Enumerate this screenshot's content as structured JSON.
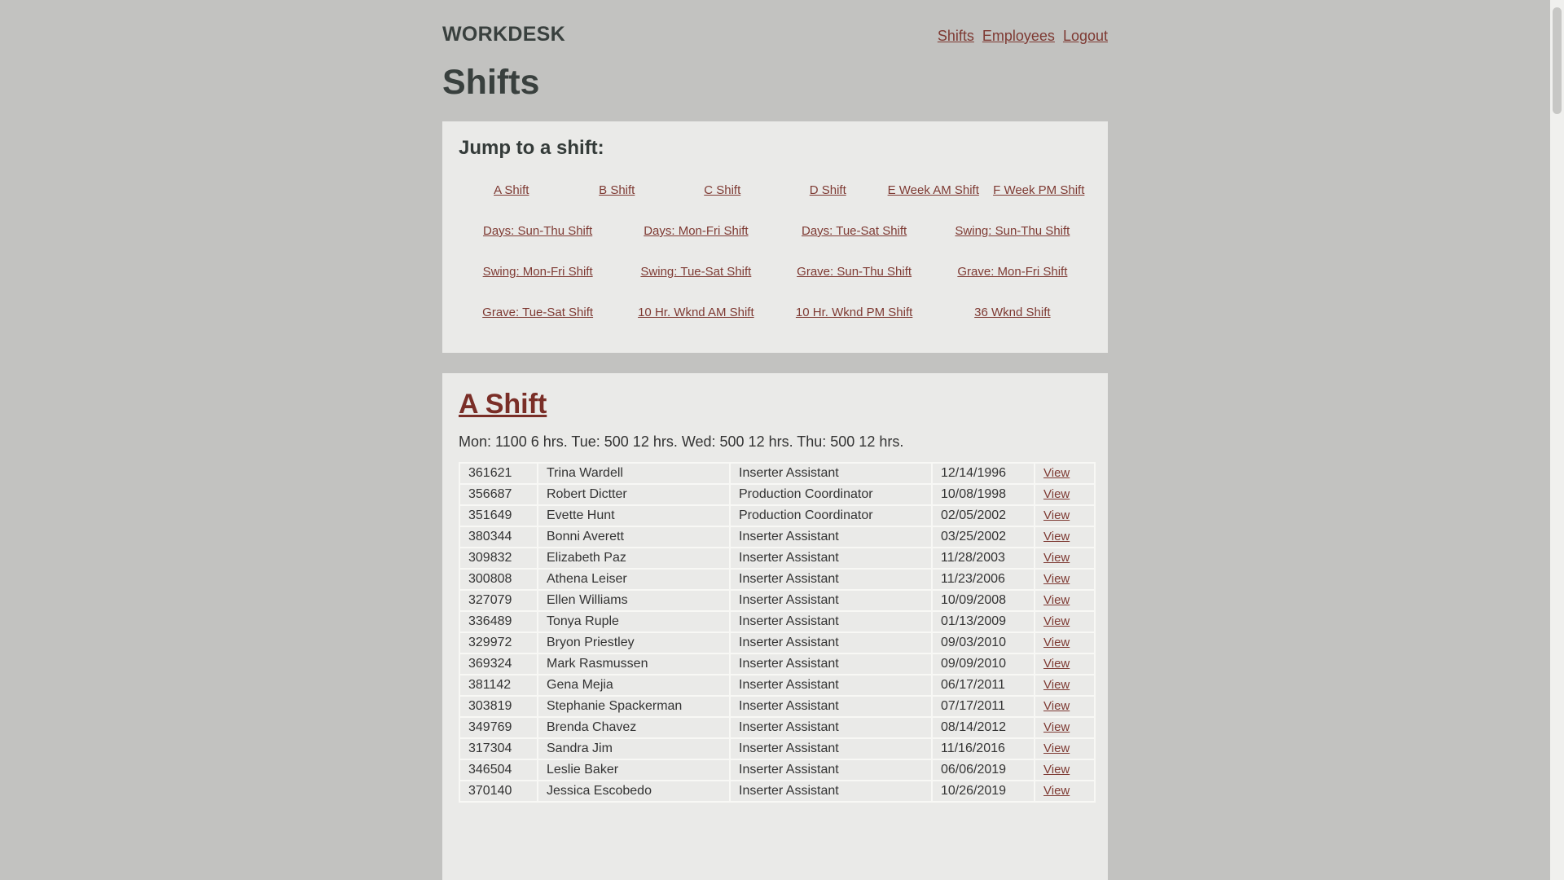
{
  "brand": "WORKDESK",
  "nav": {
    "links": [
      {
        "label": "Shifts"
      },
      {
        "label": "Employees"
      },
      {
        "label": "Logout"
      }
    ]
  },
  "page_title": "Shifts",
  "jump": {
    "heading": "Jump to a shift:",
    "rows": [
      [
        "A Shift",
        "B Shift",
        "C Shift",
        "D Shift",
        "E Week AM Shift",
        "F Week PM Shift"
      ],
      [
        "Days: Sun-Thu Shift",
        "Days: Mon-Fri Shift",
        "Days: Tue-Sat Shift",
        "Swing: Sun-Thu Shift"
      ],
      [
        "Swing: Mon-Fri Shift",
        "Swing: Tue-Sat Shift",
        "Grave: Sun-Thu Shift",
        "Grave: Mon-Fri Shift"
      ],
      [
        "Grave: Tue-Sat Shift",
        "10 Hr. Wknd AM Shift",
        "10 Hr. Wknd PM Shift",
        "36 Wknd Shift"
      ]
    ]
  },
  "shift_section": {
    "title": "A Shift",
    "schedule": "Mon: 1100 6 hrs. Tue: 500 12 hrs. Wed: 500 12 hrs. Thu: 500 12 hrs.",
    "view_label": "View",
    "employees": [
      {
        "id": "361621",
        "name": "Trina Wardell",
        "position": "Inserter Assistant",
        "date": "12/14/1996"
      },
      {
        "id": "356687",
        "name": "Robert Dictter",
        "position": "Production Coordinator",
        "date": "10/08/1998"
      },
      {
        "id": "351649",
        "name": "Evette Hunt",
        "position": "Production Coordinator",
        "date": "02/05/2002"
      },
      {
        "id": "380344",
        "name": "Bonni Averett",
        "position": "Inserter Assistant",
        "date": "03/25/2002"
      },
      {
        "id": "309832",
        "name": "Elizabeth Paz",
        "position": "Inserter Assistant",
        "date": "11/28/2003"
      },
      {
        "id": "300808",
        "name": "Athena Leiser",
        "position": "Inserter Assistant",
        "date": "11/23/2006"
      },
      {
        "id": "327079",
        "name": "Ellen Williams",
        "position": "Inserter Assistant",
        "date": "10/09/2008"
      },
      {
        "id": "336489",
        "name": "Tonya Ruple",
        "position": "Inserter Assistant",
        "date": "01/13/2009"
      },
      {
        "id": "329972",
        "name": "Bryon Priestley",
        "position": "Inserter Assistant",
        "date": "09/03/2010"
      },
      {
        "id": "369324",
        "name": "Mark Rasmussen",
        "position": "Inserter Assistant",
        "date": "09/09/2010"
      },
      {
        "id": "381142",
        "name": "Gena Mejia",
        "position": "Inserter Assistant",
        "date": "06/17/2011"
      },
      {
        "id": "303819",
        "name": "Stephanie Spackerman",
        "position": "Inserter Assistant",
        "date": "07/17/2011"
      },
      {
        "id": "349769",
        "name": "Brenda Chavez",
        "position": "Inserter Assistant",
        "date": "08/14/2012"
      },
      {
        "id": "317304",
        "name": "Sandra Jim",
        "position": "Inserter Assistant",
        "date": "11/16/2016"
      },
      {
        "id": "346504",
        "name": "Leslie Baker",
        "position": "Inserter Assistant",
        "date": "06/06/2019"
      },
      {
        "id": "370140",
        "name": "Jessica Escobedo",
        "position": "Inserter Assistant",
        "date": "10/26/2019"
      }
    ]
  },
  "colors": {
    "page_bg": "#c2c2c0",
    "panel_bg": "#eaeae8",
    "link_maroon": "#7e3a33",
    "heading_dark": "#39403e",
    "table_border": "#f8f8f5"
  }
}
